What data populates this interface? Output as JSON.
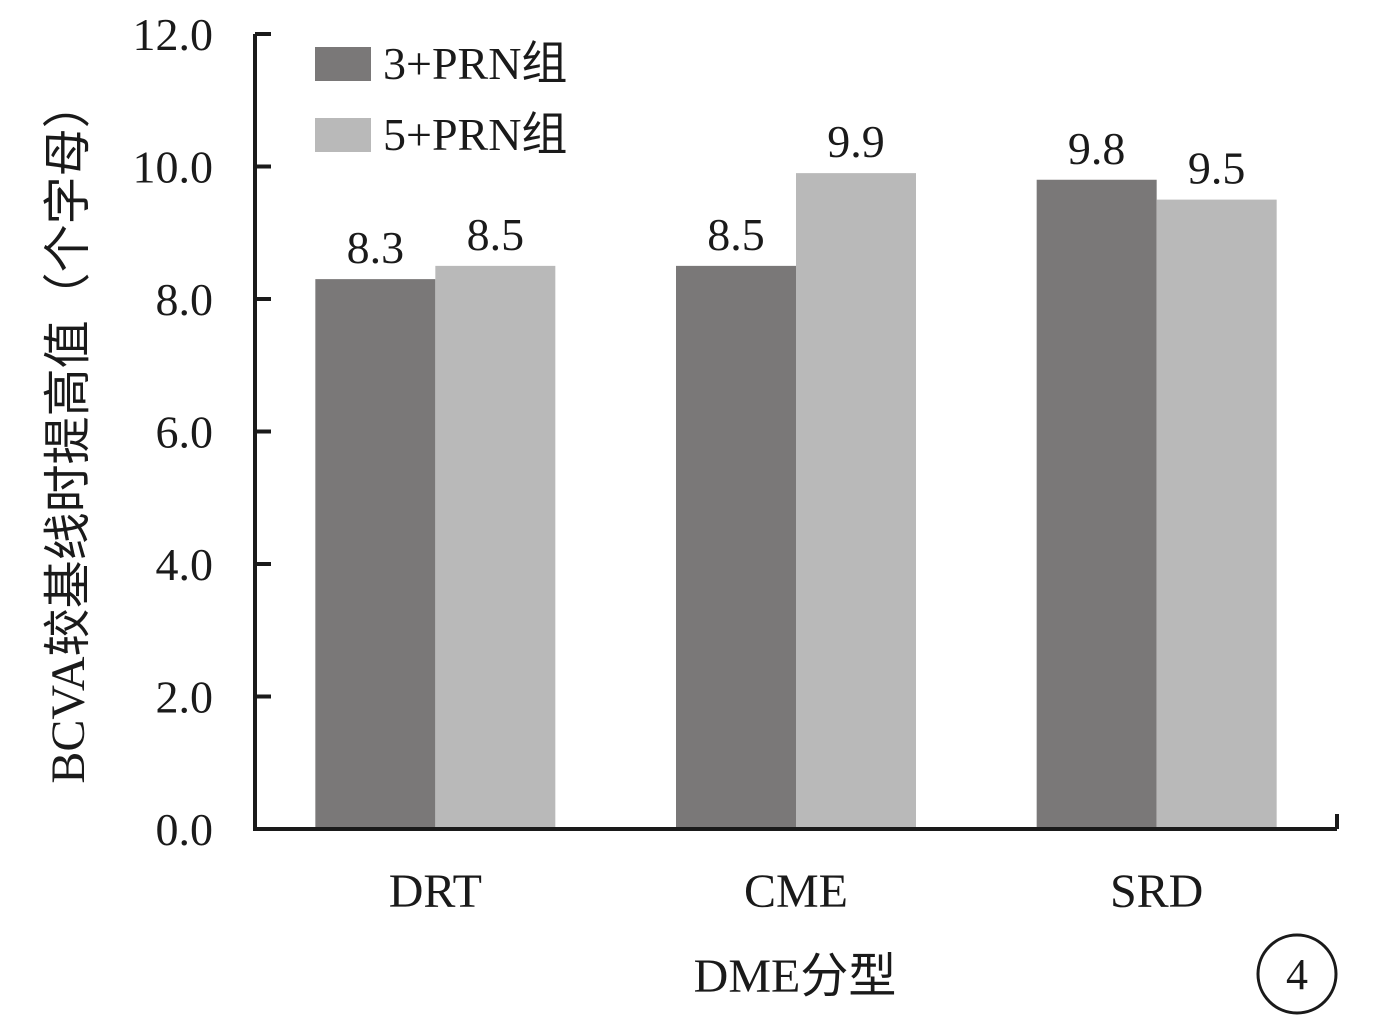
{
  "chart_data": {
    "type": "bar",
    "categories": [
      "DRT",
      "CME",
      "SRD"
    ],
    "series": [
      {
        "name": "3+PRN组",
        "values": [
          8.3,
          8.5,
          9.8
        ]
      },
      {
        "name": "5+PRN组",
        "values": [
          8.5,
          9.9,
          9.5
        ]
      }
    ],
    "data_labels": [
      [
        "8.3",
        "8.5",
        "9.8"
      ],
      [
        "8.5",
        "9.9",
        "9.5"
      ]
    ],
    "xlabel": "DME分型",
    "ylabel": "BCVA较基线时提高值（个字母）",
    "ylim": [
      0,
      12
    ],
    "yticks": [
      "0.0",
      "2.0",
      "4.0",
      "6.0",
      "8.0",
      "10.0",
      "12.0"
    ],
    "grid": false,
    "legend_position": "top-left",
    "colors": [
      "#7a7878",
      "#b9b9b9"
    ],
    "panel_number": "4"
  }
}
